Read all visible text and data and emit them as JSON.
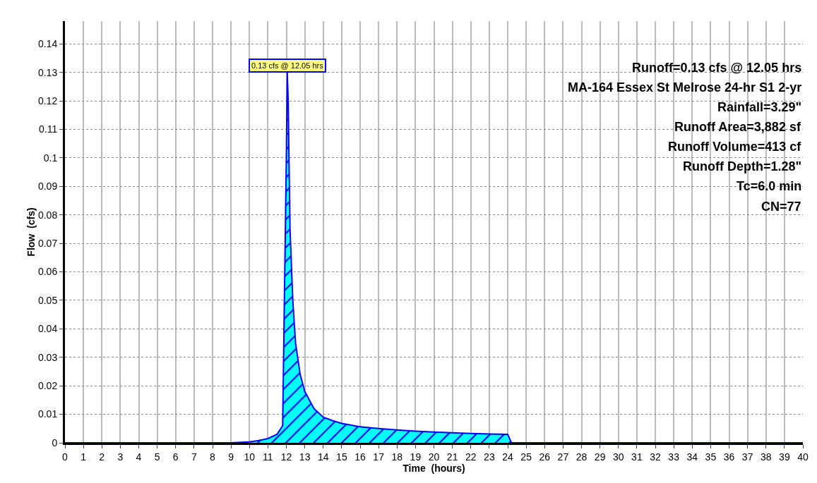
{
  "chart_data": {
    "type": "area",
    "xlabel": "Time  (hours)",
    "ylabel": "Flow  (cfs)",
    "x": [
      0,
      9,
      10,
      10.5,
      11,
      11.5,
      11.8,
      12,
      12.05,
      12.1,
      12.2,
      12.35,
      12.5,
      12.75,
      13,
      13.5,
      14,
      14.5,
      15,
      16,
      17,
      18,
      19,
      20,
      21,
      22,
      23,
      24,
      24.2,
      25,
      30,
      35,
      40
    ],
    "values": [
      0,
      0,
      0.0003,
      0.0008,
      0.0015,
      0.003,
      0.006,
      0.1,
      0.13,
      0.12,
      0.075,
      0.05,
      0.035,
      0.024,
      0.018,
      0.012,
      0.009,
      0.0078,
      0.0068,
      0.0056,
      0.005,
      0.0045,
      0.0041,
      0.0038,
      0.0035,
      0.0033,
      0.0031,
      0.003,
      0,
      0,
      0,
      0,
      0
    ],
    "color": "#00ffff",
    "xlim": [
      0,
      40
    ],
    "xticks": [
      0,
      1,
      2,
      3,
      4,
      5,
      6,
      7,
      8,
      9,
      10,
      11,
      12,
      13,
      14,
      15,
      16,
      17,
      18,
      19,
      20,
      21,
      22,
      23,
      24,
      25,
      26,
      27,
      28,
      29,
      30,
      31,
      32,
      33,
      34,
      35,
      36,
      37,
      38,
      39,
      40
    ],
    "ylim": [
      0,
      0.148
    ],
    "yticks": [
      0,
      0.01,
      0.02,
      0.03,
      0.04,
      0.05,
      0.06,
      0.07,
      0.08,
      0.09,
      0.1,
      0.11,
      0.12,
      0.13,
      0.14
    ],
    "grid": true,
    "annotations": [
      {
        "text": "0.13 cfs @ 12.05 hrs",
        "x": 12.05,
        "y": 0.13
      },
      "Runoff=0.13 cfs @ 12.05 hrs",
      "MA-164 Essex St Melrose 24-hr S1 2-yr",
      "Rainfall=3.29\"",
      "Runoff Area=3,882 sf",
      "Runoff Volume=413 cf",
      "Runoff Depth=1.28\"",
      "Tc=6.0 min",
      "CN=77"
    ]
  }
}
